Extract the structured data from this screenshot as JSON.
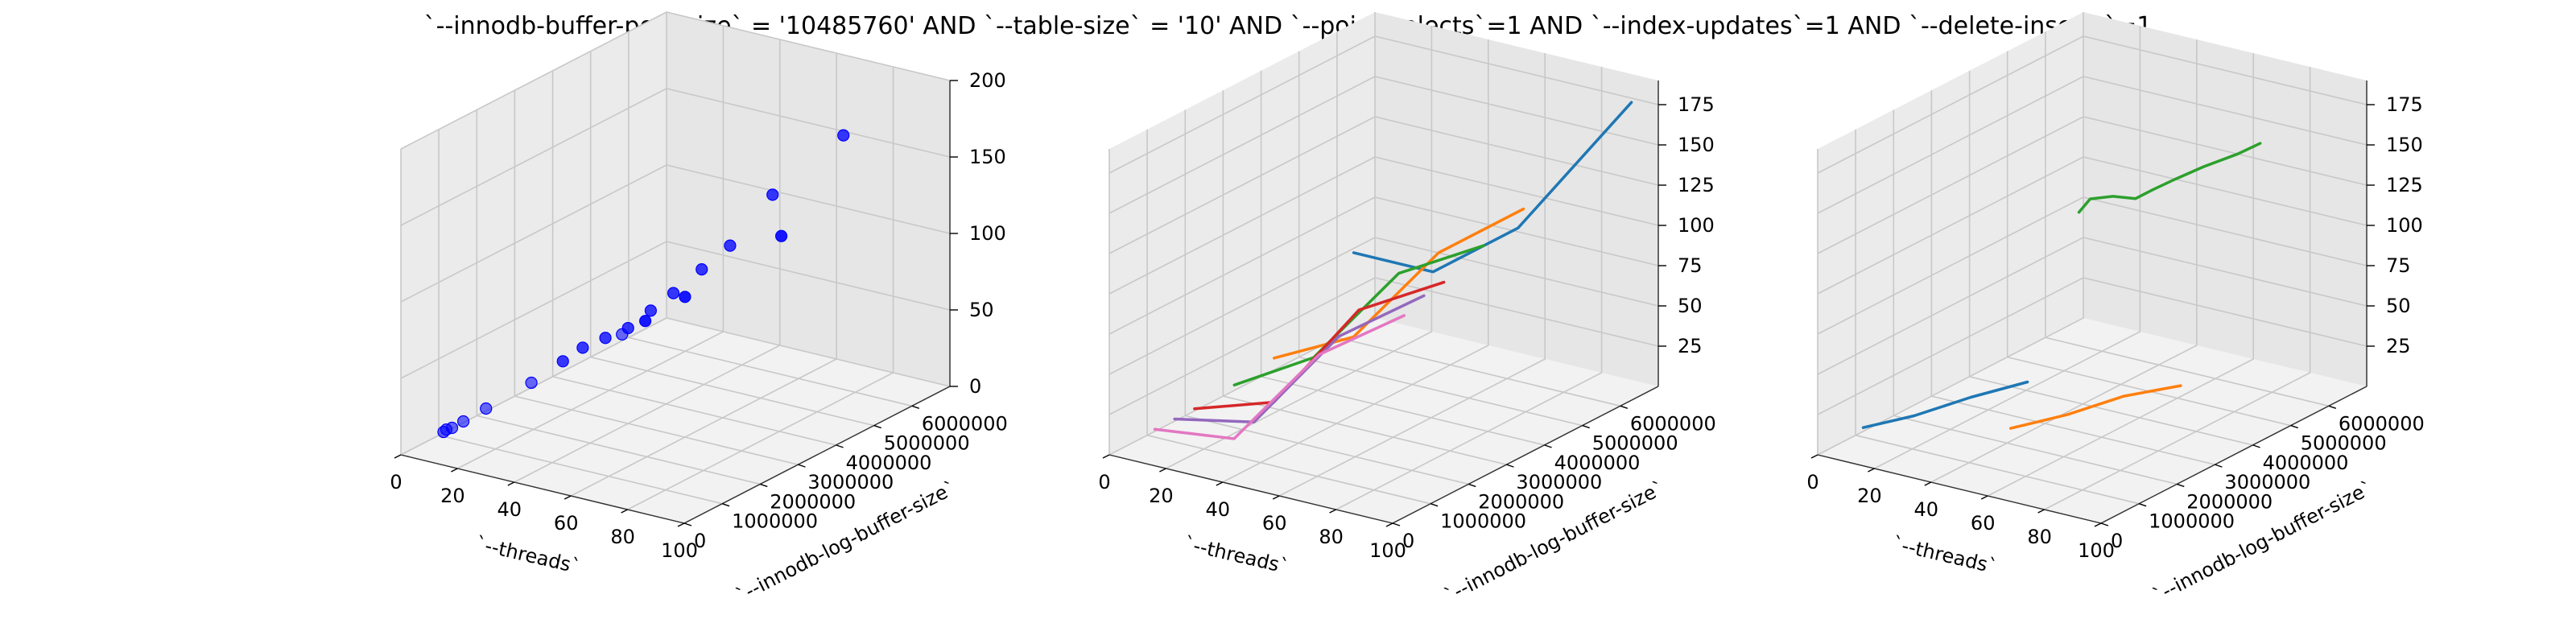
{
  "figure": {
    "title": "`--innodb-buffer-pool-size` = '10485760' AND `--table-size` = '10'  AND `--point-selects`=1 AND `--index-updates`=1 AND `--delete-inserts`=1"
  },
  "colors": {
    "scatter": "#0000ff",
    "c0": "#1f77b4",
    "c1": "#ff7f0e",
    "c2": "#2ca02c",
    "c3": "#d62728",
    "c4": "#9467bd",
    "c5": "#e377c2"
  },
  "chart_data": [
    {
      "type": "scatter",
      "panel": "left",
      "xlabel": "`--threads`",
      "ylabel": "`--innodb-log-buffer-size`",
      "zlabel": "",
      "xlim": [
        0,
        100
      ],
      "ylim": [
        0,
        7000000
      ],
      "zlim": [
        0,
        200
      ],
      "xticks": [
        "0",
        "20",
        "40",
        "60",
        "80",
        "100"
      ],
      "yticks": [
        "0",
        "1000000",
        "2000000",
        "3000000",
        "4000000",
        "5000000",
        "6000000"
      ],
      "zticks": [
        "0",
        "50",
        "100",
        "150",
        "200"
      ],
      "points": [
        {
          "x": 1,
          "y": 1048576,
          "z": 2
        },
        {
          "x": 2,
          "y": 1048576,
          "z": 4
        },
        {
          "x": 4,
          "y": 1048576,
          "z": 6
        },
        {
          "x": 8,
          "y": 1048576,
          "z": 12
        },
        {
          "x": 16,
          "y": 1048576,
          "z": 24
        },
        {
          "x": 32,
          "y": 1048576,
          "z": 48
        },
        {
          "x": 64,
          "y": 1048576,
          "z": 94
        },
        {
          "x": 1,
          "y": 4194304,
          "z": 8
        },
        {
          "x": 8,
          "y": 4194304,
          "z": 20
        },
        {
          "x": 16,
          "y": 4194304,
          "z": 30
        },
        {
          "x": 24,
          "y": 4194304,
          "z": 40
        },
        {
          "x": 32,
          "y": 4194304,
          "z": 55
        },
        {
          "x": 40,
          "y": 4194304,
          "z": 70
        },
        {
          "x": 50,
          "y": 4194304,
          "z": 90
        },
        {
          "x": 60,
          "y": 4194304,
          "z": 110
        },
        {
          "x": 75,
          "y": 4194304,
          "z": 150
        },
        {
          "x": 100,
          "y": 4194304,
          "z": 200
        },
        {
          "x": 2,
          "y": 6291456,
          "z": 8
        },
        {
          "x": 16,
          "y": 6291456,
          "z": 30
        },
        {
          "x": 50,
          "y": 6291456,
          "z": 85
        }
      ]
    },
    {
      "type": "line",
      "panel": "middle",
      "xlabel": "`--threads`",
      "ylabel": "`--innodb-log-buffer-size`",
      "zlabel": "",
      "xlim": [
        0,
        100
      ],
      "ylim": [
        0,
        7000000
      ],
      "zlim": [
        0,
        190
      ],
      "xticks": [
        "0",
        "20",
        "40",
        "60",
        "80",
        "100"
      ],
      "yticks": [
        "0",
        "1000000",
        "2000000",
        "3000000",
        "4000000",
        "5000000",
        "6000000"
      ],
      "zticks": [
        "25",
        "50",
        "75",
        "100",
        "125",
        "150",
        "175"
      ],
      "series": [
        {
          "color": "c0",
          "points": [
            {
              "x": 2,
              "y": 6291456,
              "z": 50
            },
            {
              "x": 30,
              "y": 6291456,
              "z": 50
            },
            {
              "x": 60,
              "y": 6291456,
              "z": 90
            },
            {
              "x": 100,
              "y": 6291456,
              "z": 185
            }
          ]
        },
        {
          "color": "c1",
          "points": [
            {
              "x": 2,
              "y": 4194304,
              "z": 10
            },
            {
              "x": 30,
              "y": 4194304,
              "z": 35
            },
            {
              "x": 60,
              "y": 4194304,
              "z": 100
            },
            {
              "x": 90,
              "y": 4194304,
              "z": 140
            }
          ]
        },
        {
          "color": "c2",
          "points": [
            {
              "x": 2,
              "y": 3145728,
              "z": 6
            },
            {
              "x": 30,
              "y": 3145728,
              "z": 35
            },
            {
              "x": 60,
              "y": 3145728,
              "z": 100
            },
            {
              "x": 90,
              "y": 3145728,
              "z": 130
            }
          ]
        },
        {
          "color": "c3",
          "points": [
            {
              "x": 2,
              "y": 2097152,
              "z": 4
            },
            {
              "x": 30,
              "y": 2097152,
              "z": 20
            },
            {
              "x": 60,
              "y": 2097152,
              "z": 90
            },
            {
              "x": 90,
              "y": 2097152,
              "z": 120
            }
          ]
        },
        {
          "color": "c4",
          "points": [
            {
              "x": 2,
              "y": 1572864,
              "z": 4
            },
            {
              "x": 30,
              "y": 1572864,
              "z": 14
            },
            {
              "x": 60,
              "y": 1572864,
              "z": 80
            },
            {
              "x": 90,
              "y": 1572864,
              "z": 118
            }
          ]
        },
        {
          "color": "c5",
          "points": [
            {
              "x": 2,
              "y": 1048576,
              "z": 4
            },
            {
              "x": 30,
              "y": 1048576,
              "z": 10
            },
            {
              "x": 60,
              "y": 1048576,
              "z": 75
            },
            {
              "x": 90,
              "y": 1048576,
              "z": 112
            }
          ]
        }
      ]
    },
    {
      "type": "line",
      "panel": "right",
      "xlabel": "`--threads`",
      "ylabel": "`--innodb-log-buffer-size`",
      "zlabel": "",
      "xlim": [
        0,
        100
      ],
      "ylim": [
        0,
        7000000
      ],
      "zlim": [
        0,
        190
      ],
      "xticks": [
        "0",
        "20",
        "40",
        "60",
        "80",
        "100"
      ],
      "yticks": [
        "0",
        "1000000",
        "2000000",
        "3000000",
        "4000000",
        "5000000",
        "6000000"
      ],
      "zticks": [
        "25",
        "50",
        "75",
        "100",
        "125",
        "150",
        "175"
      ],
      "series": [
        {
          "color": "c0",
          "points": [
            {
              "x": 2,
              "y": 1048576,
              "z": 5
            },
            {
              "x": 20,
              "y": 1048576,
              "z": 20
            },
            {
              "x": 40,
              "y": 1048576,
              "z": 40
            },
            {
              "x": 60,
              "y": 1048576,
              "z": 58
            }
          ]
        },
        {
          "color": "c1",
          "points": [
            {
              "x": 40,
              "y": 2097152,
              "z": 8
            },
            {
              "x": 60,
              "y": 2097152,
              "z": 25
            },
            {
              "x": 80,
              "y": 2097152,
              "z": 45
            },
            {
              "x": 100,
              "y": 2097152,
              "z": 60
            }
          ]
        },
        {
          "color": "c2",
          "points": [
            {
              "x": 36,
              "y": 4194304,
              "z": 115
            },
            {
              "x": 40,
              "y": 4194304,
              "z": 125
            },
            {
              "x": 48,
              "y": 4194304,
              "z": 130
            },
            {
              "x": 56,
              "y": 4194304,
              "z": 132
            },
            {
              "x": 62,
              "y": 4194304,
              "z": 140
            },
            {
              "x": 70,
              "y": 4194304,
              "z": 150
            },
            {
              "x": 80,
              "y": 4194304,
              "z": 162
            },
            {
              "x": 92,
              "y": 4194304,
              "z": 175
            },
            {
              "x": 100,
              "y": 4194304,
              "z": 185
            }
          ]
        }
      ]
    }
  ]
}
